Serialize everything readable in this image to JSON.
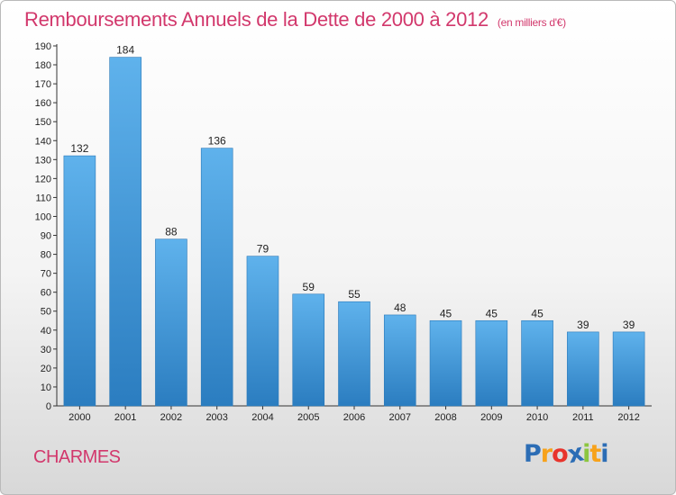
{
  "title": "Remboursements Annuels de la Dette de 2000 à 2012",
  "unit": "(en milliers d'€)",
  "commune": "CHARMES",
  "logo": {
    "letters": [
      "P",
      "r",
      "o",
      "x",
      "i",
      "t",
      "i"
    ],
    "colors": [
      "#2c6db5",
      "#f7a21b",
      "#e8342c",
      "#2c6db5",
      "#8cc63f",
      "#f7a21b",
      "#2c6db5"
    ]
  },
  "colors": {
    "bar_light": "#5fb2ec",
    "bar_dark": "#2b7dc0",
    "title": "#d2386c"
  },
  "chart_data": {
    "type": "bar",
    "categories": [
      "2000",
      "2001",
      "2002",
      "2003",
      "2004",
      "2005",
      "2006",
      "2007",
      "2008",
      "2009",
      "2010",
      "2011",
      "2012"
    ],
    "values": [
      132,
      184,
      88,
      136,
      79,
      59,
      55,
      48,
      45,
      45,
      45,
      39,
      39
    ],
    "title": "Remboursements Annuels de la Dette de 2000 à 2012",
    "ylim": [
      0,
      190
    ],
    "yticks": [
      0,
      10,
      20,
      30,
      40,
      50,
      60,
      70,
      80,
      90,
      100,
      110,
      120,
      130,
      140,
      150,
      160,
      170,
      180,
      190
    ],
    "grid": false,
    "data_labels": true
  }
}
